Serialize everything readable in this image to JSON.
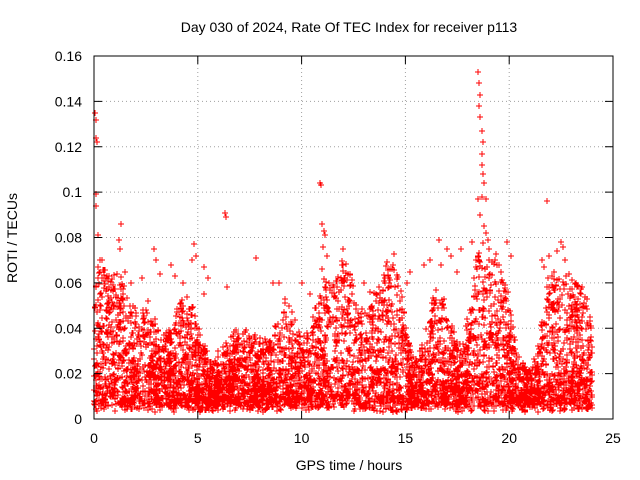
{
  "chart_data": {
    "type": "scatter",
    "title": "Day 030 of 2024, Rate Of TEC Index for receiver p113",
    "xlabel": "GPS time / hours",
    "ylabel": "ROTI / TECUs",
    "xlim": [
      0,
      25
    ],
    "ylim": [
      0,
      0.16
    ],
    "xticks": [
      0,
      5,
      10,
      15,
      20,
      25
    ],
    "xtick_labels": [
      "0",
      "5",
      "10",
      "15",
      "20",
      "25"
    ],
    "yticks": [
      0,
      0.02,
      0.04,
      0.06,
      0.08,
      0.1,
      0.12,
      0.14,
      0.16
    ],
    "ytick_labels": [
      "0",
      "0.02",
      "0.04",
      "0.06",
      "0.08",
      "0.1",
      "0.12",
      "0.14",
      "0.16"
    ],
    "grid": true,
    "marker": "plus",
    "color": "#ff0000",
    "series": [
      {
        "name": "ROTI",
        "points": [
          [
            0.05,
            0.135
          ],
          [
            0.1,
            0.132
          ],
          [
            0.12,
            0.124
          ],
          [
            0.15,
            0.122
          ],
          [
            0.12,
            0.099
          ],
          [
            0.12,
            0.094
          ],
          [
            0.2,
            0.081
          ],
          [
            0.2,
            0.067
          ],
          [
            0.3,
            0.065
          ],
          [
            0.4,
            0.062
          ],
          [
            0.1,
            0.058
          ],
          [
            0.3,
            0.055
          ],
          [
            0.6,
            0.048
          ],
          [
            1.3,
            0.086
          ],
          [
            1.2,
            0.079
          ],
          [
            1.25,
            0.075
          ],
          [
            1.5,
            0.065
          ],
          [
            1.8,
            0.06
          ],
          [
            2.3,
            0.062
          ],
          [
            2.6,
            0.052
          ],
          [
            2.9,
            0.075
          ],
          [
            3.0,
            0.07
          ],
          [
            3.2,
            0.064
          ],
          [
            3.7,
            0.068
          ],
          [
            3.9,
            0.063
          ],
          [
            4.3,
            0.06
          ],
          [
            4.7,
            0.07
          ],
          [
            4.8,
            0.077
          ],
          [
            4.9,
            0.072
          ],
          [
            5.3,
            0.067
          ],
          [
            5.5,
            0.062
          ],
          [
            5.3,
            0.055
          ],
          [
            6.3,
            0.091
          ],
          [
            6.35,
            0.089
          ],
          [
            6.4,
            0.058
          ],
          [
            7.8,
            0.071
          ],
          [
            8.6,
            0.06
          ],
          [
            8.9,
            0.06
          ],
          [
            9.2,
            0.053
          ],
          [
            9.4,
            0.05
          ],
          [
            10.0,
            0.06
          ],
          [
            10.4,
            0.055
          ],
          [
            10.9,
            0.104
          ],
          [
            10.95,
            0.103
          ],
          [
            11.0,
            0.086
          ],
          [
            11.1,
            0.083
          ],
          [
            11.15,
            0.081
          ],
          [
            11.05,
            0.076
          ],
          [
            11.2,
            0.072
          ],
          [
            11.0,
            0.066
          ],
          [
            12.0,
            0.075
          ],
          [
            12.0,
            0.068
          ],
          [
            11.9,
            0.062
          ],
          [
            13.0,
            0.06
          ],
          [
            13.3,
            0.056
          ],
          [
            13.6,
            0.055
          ],
          [
            14.0,
            0.06
          ],
          [
            14.2,
            0.062
          ],
          [
            14.5,
            0.058
          ],
          [
            15.2,
            0.065
          ],
          [
            15.1,
            0.06
          ],
          [
            15.9,
            0.068
          ],
          [
            16.2,
            0.07
          ],
          [
            16.7,
            0.068
          ],
          [
            16.6,
            0.079
          ],
          [
            17.0,
            0.075
          ],
          [
            17.2,
            0.072
          ],
          [
            17.5,
            0.065
          ],
          [
            17.7,
            0.075
          ],
          [
            18.2,
            0.078
          ],
          [
            18.4,
            0.07
          ],
          [
            18.5,
            0.153
          ],
          [
            18.55,
            0.148
          ],
          [
            18.6,
            0.143
          ],
          [
            18.55,
            0.138
          ],
          [
            18.6,
            0.133
          ],
          [
            18.7,
            0.127
          ],
          [
            18.75,
            0.122
          ],
          [
            18.7,
            0.117
          ],
          [
            18.7,
            0.112
          ],
          [
            18.75,
            0.108
          ],
          [
            18.8,
            0.104
          ],
          [
            18.7,
            0.098
          ],
          [
            18.9,
            0.097
          ],
          [
            18.5,
            0.097
          ],
          [
            18.6,
            0.09
          ],
          [
            18.8,
            0.085
          ],
          [
            18.9,
            0.082
          ],
          [
            19.0,
            0.079
          ],
          [
            19.3,
            0.07
          ],
          [
            19.5,
            0.068
          ],
          [
            19.6,
            0.065
          ],
          [
            19.9,
            0.078
          ],
          [
            20.1,
            0.072
          ],
          [
            21.8,
            0.096
          ],
          [
            21.6,
            0.07
          ],
          [
            21.7,
            0.067
          ],
          [
            21.9,
            0.072
          ],
          [
            22.3,
            0.074
          ],
          [
            22.5,
            0.078
          ],
          [
            22.6,
            0.076
          ],
          [
            22.7,
            0.07
          ],
          [
            22.9,
            0.064
          ],
          [
            23.2,
            0.06
          ],
          [
            23.5,
            0.058
          ],
          [
            23.7,
            0.05
          ],
          [
            23.9,
            0.045
          ],
          [
            23.95,
            0.04
          ]
        ]
      }
    ]
  }
}
